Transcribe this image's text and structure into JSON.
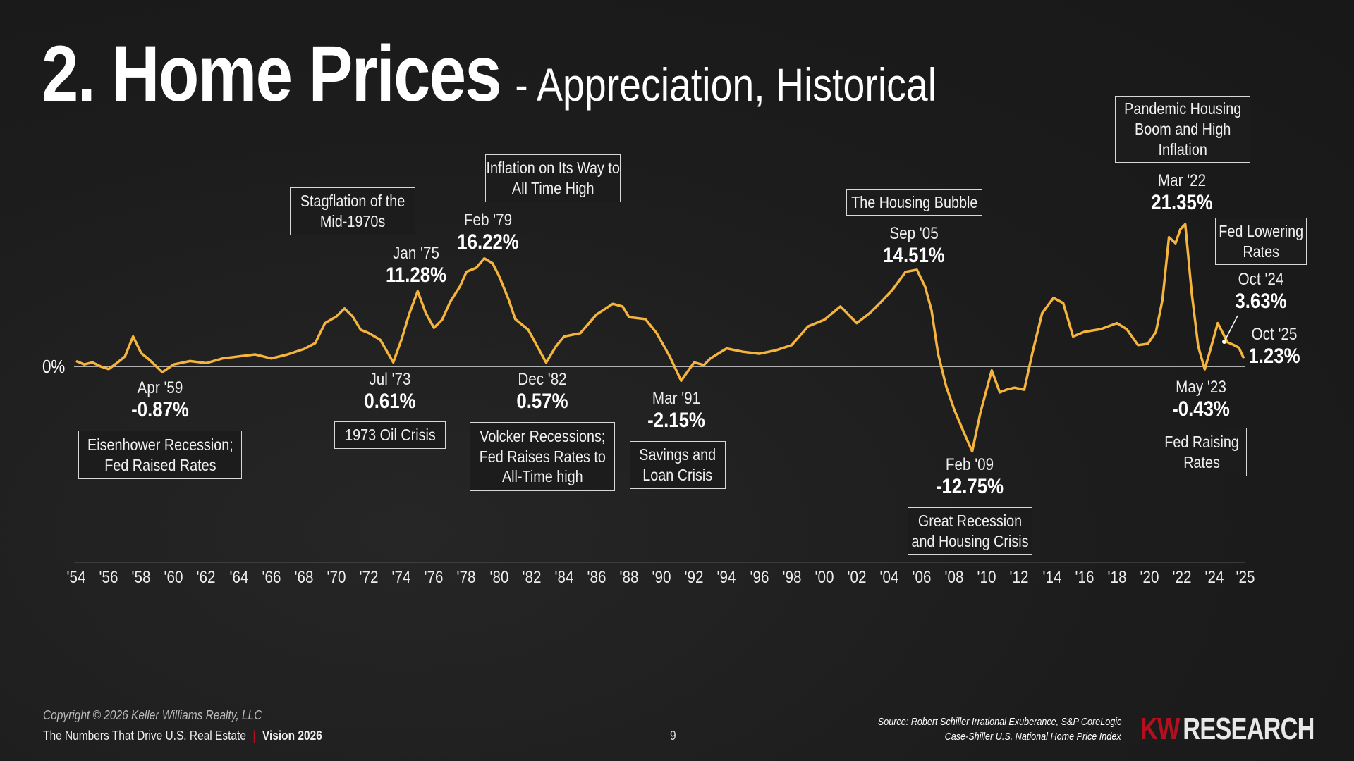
{
  "header": {
    "title": "2. Home Prices",
    "subtitle": "- Appreciation, Historical"
  },
  "chart_data": {
    "type": "line",
    "title": "2. Home Prices",
    "subtitle": "- Appreciation, Historical",
    "xlim": [
      1954,
      2025.8
    ],
    "ylim": [
      -15,
      25
    ],
    "zero_label": "0%",
    "line_color": "#f5b43c",
    "x_tick_labels": [
      "'54",
      "'56",
      "'58",
      "'60",
      "'62",
      "'64",
      "'66",
      "'68",
      "'70",
      "'72",
      "'74",
      "'76",
      "'78",
      "'80",
      "'82",
      "'84",
      "'86",
      "'88",
      "'90",
      "'92",
      "'94",
      "'96",
      "'98",
      "'00",
      "'02",
      "'04",
      "'06",
      "'08",
      "'10",
      "'12",
      "'14",
      "'16",
      "'18",
      "'20",
      "'22",
      "'24",
      "'25"
    ],
    "series": [
      {
        "x": [
          1954,
          1954.5,
          1955,
          1955.5,
          1956,
          1956.5,
          1957,
          1957.5,
          1958,
          1958.5,
          1959.3,
          1960,
          1961,
          1962,
          1963,
          1964,
          1965,
          1966,
          1967,
          1968,
          1968.7,
          1969.3,
          1970,
          1970.5,
          1971,
          1971.5,
          1972,
          1972.7,
          1973.5,
          1974,
          1974.5,
          1975,
          1975.5,
          1976,
          1976.5,
          1977,
          1977.6,
          1978,
          1978.6,
          1979.1,
          1979.6,
          1980,
          1980.6,
          1981,
          1981.8,
          1982.9,
          1983.5,
          1984,
          1985,
          1986,
          1987,
          1987.6,
          1988,
          1989,
          1989.7,
          1990.5,
          1991.2,
          1992,
          1992.6,
          1993,
          1994,
          1995,
          1996,
          1997,
          1998,
          1999,
          2000,
          2001,
          2002,
          2002.8,
          2003.5,
          2004.2,
          2005,
          2005.7,
          2006.2,
          2006.6,
          2007,
          2007.5,
          2008,
          2008.6,
          2009.1,
          2009.6,
          2010.3,
          2010.8,
          2011.2,
          2011.7,
          2012.3,
          2012.8,
          2013.4,
          2014.1,
          2014.7,
          2015.3,
          2016,
          2017,
          2018,
          2018.6,
          2019.3,
          2019.9,
          2020.4,
          2020.8,
          2021.2,
          2021.6,
          2021.9,
          2022.2,
          2022.6,
          2023,
          2023.4,
          2023.8,
          2024.2,
          2024.8,
          2025.2,
          2025.5,
          2025.8
        ],
        "y": [
          0.8,
          0.3,
          0.6,
          0,
          -0.4,
          0.5,
          1.5,
          4.5,
          2,
          1,
          -0.87,
          0.3,
          0.8,
          0.5,
          1.2,
          1.5,
          1.8,
          1.2,
          1.8,
          2.6,
          3.5,
          6.5,
          7.5,
          8.7,
          7.5,
          5.5,
          5,
          4,
          0.61,
          4,
          8,
          11.28,
          8,
          5.8,
          7,
          9.7,
          12,
          14.2,
          14.8,
          16.22,
          15.5,
          13.6,
          10,
          7.1,
          5.5,
          0.57,
          3,
          4.5,
          5,
          7.8,
          9.4,
          9,
          7.4,
          7.1,
          5,
          1.5,
          -2.15,
          0.6,
          0.2,
          1.2,
          2.7,
          2.2,
          1.9,
          2.4,
          3.2,
          6,
          7,
          9,
          6.5,
          8,
          9.7,
          11.5,
          14.2,
          14.51,
          12,
          8.4,
          1.9,
          -3,
          -6.5,
          -10,
          -12.75,
          -7,
          -0.6,
          -3.9,
          -3.5,
          -3.2,
          -3.5,
          2,
          8,
          10.3,
          9.5,
          4.5,
          5.2,
          5.6,
          6.5,
          5.6,
          3.2,
          3.4,
          5.2,
          10,
          19.4,
          18.5,
          20.6,
          21.35,
          11,
          3,
          -0.43,
          3,
          6.5,
          3.63,
          3.2,
          2.8,
          1.23
        ]
      }
    ],
    "annotations": [
      {
        "date": "Apr '59",
        "value": "-0.87%",
        "note": "Eisenhower Recession; Fed Raised Rates"
      },
      {
        "date": "Jul '73",
        "value": "0.61%",
        "note": "1973 Oil Crisis"
      },
      {
        "date": "Dec '82",
        "value": "0.57%",
        "note": "Volcker Recessions; Fed Raises Rates to All-Time high"
      },
      {
        "date": "Mar '91",
        "value": "-2.15%",
        "note": "Savings and Loan Crisis"
      },
      {
        "date": "Feb '09",
        "value": "-12.75%",
        "note": "Great Recession and Housing Crisis"
      },
      {
        "date": "May '23",
        "value": "-0.43%",
        "note": "Fed Raising Rates"
      },
      {
        "date": "Jan '75",
        "value": "11.28%",
        "note": "Stagflation of the Mid-1970s"
      },
      {
        "date": "Feb '79",
        "value": "16.22%",
        "note": "Inflation on Its Way to All Time High"
      },
      {
        "date": "Sep '05",
        "value": "14.51%",
        "note": "The Housing Bubble"
      },
      {
        "date": "Mar '22",
        "value": "21.35%",
        "note": "Pandemic Housing Boom and High Inflation"
      },
      {
        "date": "Oct '24",
        "value": "3.63%",
        "note": "Fed Lowering Rates"
      },
      {
        "date": "Oct '25",
        "value": "1.23%"
      }
    ]
  },
  "footer": {
    "copyright": "Copyright © 2026 Keller Williams Realty, LLC",
    "tagline": "The Numbers That Drive U.S. Real Estate",
    "separator": "|",
    "edition": "Vision 2026",
    "page_number": "9",
    "source_line1": "Source: Robert Schiller Irrational Exuberance, S&P CoreLogic",
    "source_line2": "Case-Shiller U.S. National Home Price Index",
    "logo_kw": "KW",
    "logo_research": "RESEARCH",
    "logo_kw_color": "#b40f1e"
  }
}
